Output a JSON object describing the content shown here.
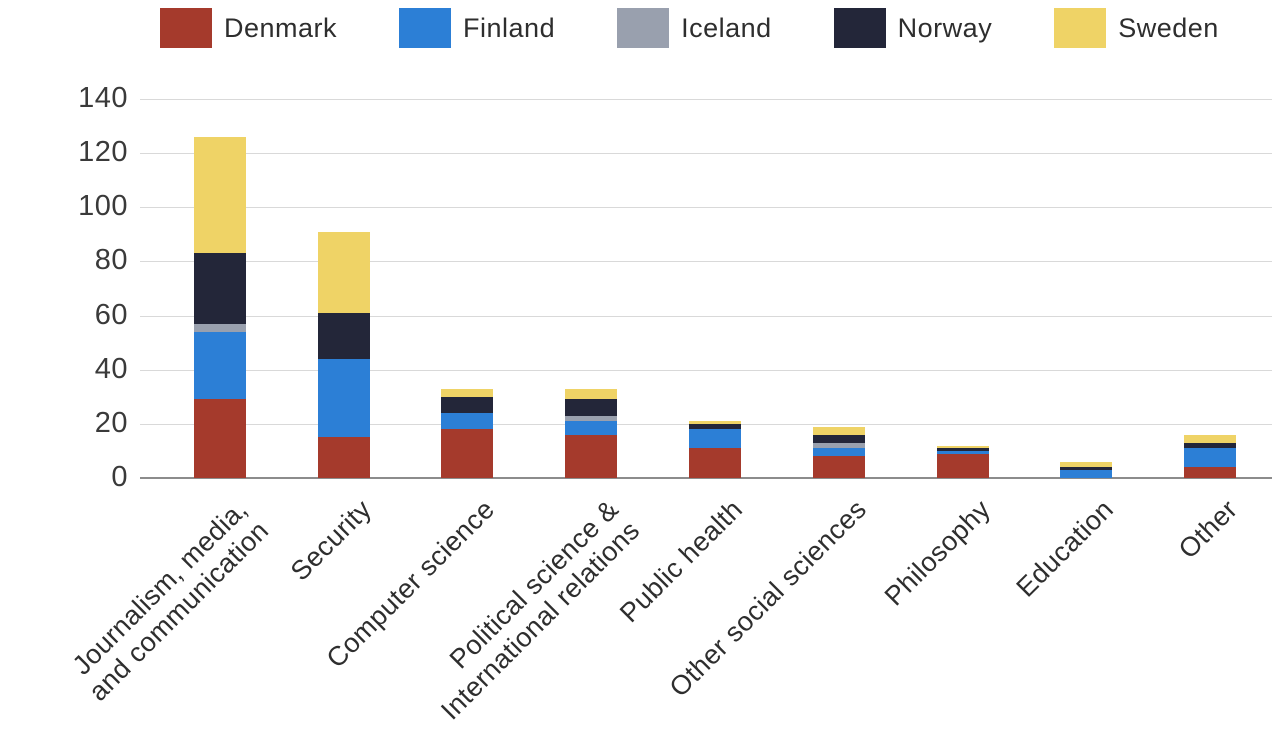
{
  "chart_data": {
    "type": "bar",
    "stacked": true,
    "title": "",
    "xlabel": "",
    "ylabel": "",
    "ylim": [
      0,
      140
    ],
    "ytick_interval": 20,
    "ytick_labels": [
      "0",
      "20",
      "40",
      "60",
      "80",
      "100",
      "120",
      "140"
    ],
    "grid": true,
    "legend_position": "top",
    "categories": [
      "Journalism, media,\nand communication",
      "Security",
      "Computer science",
      "Political science &\nInternational relations",
      "Public health",
      "Other social sciences",
      "Philosophy",
      "Education",
      "Other"
    ],
    "series": [
      {
        "name": "Denmark",
        "color": "#a53a2c",
        "values": [
          29,
          15,
          18,
          16,
          11,
          8,
          9,
          0,
          4
        ]
      },
      {
        "name": "Finland",
        "color": "#2c7fd6",
        "values": [
          25,
          29,
          6,
          5,
          7,
          3,
          1,
          3,
          7
        ]
      },
      {
        "name": "Iceland",
        "color": "#99a0ae",
        "values": [
          3,
          0,
          0,
          2,
          0,
          2,
          0,
          0,
          0
        ]
      },
      {
        "name": "Norway",
        "color": "#232639",
        "values": [
          26,
          17,
          6,
          6,
          2,
          3,
          1,
          1,
          2
        ]
      },
      {
        "name": "Sweden",
        "color": "#efd366",
        "values": [
          43,
          30,
          3,
          4,
          1,
          3,
          1,
          2,
          3
        ]
      }
    ],
    "colors": {
      "grid": "#d9d9d9",
      "axis": "#8c8c8c",
      "text": "#2e2e2e"
    }
  }
}
